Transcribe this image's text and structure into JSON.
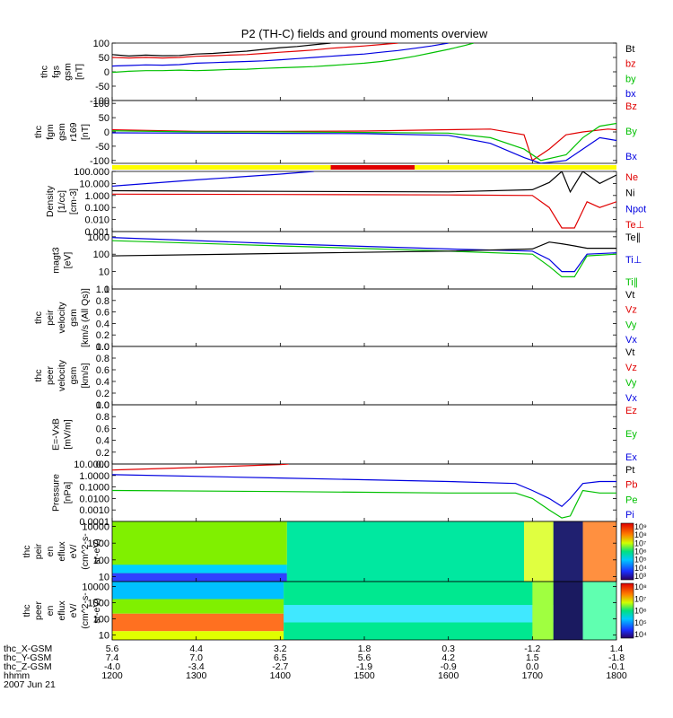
{
  "title": "P2 (TH-C) fields and ground moments overview",
  "chart_data": [
    {
      "id": "fgs",
      "type": "line",
      "ylabel": [
        "thc",
        "fgs",
        "gsm",
        "[nT]"
      ],
      "yticks": [
        "100",
        "50",
        "0",
        "-50",
        "-100"
      ],
      "ylim": [
        -100,
        100
      ],
      "series": [
        {
          "name": "Bt",
          "color": "#000000"
        },
        {
          "name": "bz",
          "color": "#e00000"
        },
        {
          "name": "by",
          "color": "#00c000"
        },
        {
          "name": "bx",
          "color": "#0000e0"
        }
      ],
      "lines": {
        "Bt": [
          [
            1200,
            60
          ],
          [
            1220,
            55
          ],
          [
            1240,
            58
          ],
          [
            1260,
            56
          ],
          [
            1280,
            57
          ],
          [
            1300,
            62
          ],
          [
            1320,
            64
          ],
          [
            1340,
            68
          ],
          [
            1360,
            72
          ],
          [
            1380,
            78
          ],
          [
            1400,
            84
          ],
          [
            1420,
            88
          ],
          [
            1440,
            94
          ],
          [
            1460,
            100
          ]
        ],
        "bz": [
          [
            1200,
            50
          ],
          [
            1220,
            48
          ],
          [
            1240,
            50
          ],
          [
            1260,
            48
          ],
          [
            1280,
            50
          ],
          [
            1300,
            54
          ],
          [
            1320,
            56
          ],
          [
            1340,
            58
          ],
          [
            1360,
            60
          ],
          [
            1380,
            64
          ],
          [
            1400,
            68
          ],
          [
            1420,
            72
          ],
          [
            1440,
            76
          ],
          [
            1460,
            82
          ],
          [
            1480,
            86
          ],
          [
            1500,
            90
          ],
          [
            1520,
            95
          ],
          [
            1540,
            100
          ]
        ],
        "bx": [
          [
            1200,
            20
          ],
          [
            1220,
            22
          ],
          [
            1240,
            24
          ],
          [
            1260,
            23
          ],
          [
            1280,
            25
          ],
          [
            1300,
            30
          ],
          [
            1320,
            32
          ],
          [
            1340,
            34
          ],
          [
            1360,
            36
          ],
          [
            1380,
            38
          ],
          [
            1400,
            42
          ],
          [
            1420,
            46
          ],
          [
            1440,
            50
          ],
          [
            1460,
            54
          ],
          [
            1480,
            58
          ],
          [
            1500,
            62
          ],
          [
            1520,
            68
          ],
          [
            1540,
            74
          ],
          [
            1560,
            82
          ],
          [
            1580,
            90
          ],
          [
            1600,
            100
          ]
        ],
        "by": [
          [
            1200,
            -2
          ],
          [
            1220,
            2
          ],
          [
            1240,
            4
          ],
          [
            1260,
            4
          ],
          [
            1280,
            6
          ],
          [
            1300,
            4
          ],
          [
            1320,
            6
          ],
          [
            1340,
            8
          ],
          [
            1360,
            9
          ],
          [
            1380,
            12
          ],
          [
            1400,
            14
          ],
          [
            1420,
            16
          ],
          [
            1440,
            18
          ],
          [
            1460,
            22
          ],
          [
            1480,
            26
          ],
          [
            1500,
            30
          ],
          [
            1520,
            36
          ],
          [
            1540,
            44
          ],
          [
            1560,
            54
          ],
          [
            1580,
            66
          ],
          [
            1600,
            78
          ],
          [
            1620,
            92
          ],
          [
            1630,
            100
          ]
        ]
      }
    },
    {
      "id": "fgm",
      "type": "line",
      "ylabel": [
        "thc",
        "fgm",
        "gsm",
        "r169",
        "[nT]"
      ],
      "yticks": [
        "100",
        "50",
        "0",
        "-50",
        "-100"
      ],
      "ylim": [
        -110,
        110
      ],
      "series": [
        {
          "name": "Bz",
          "color": "#e00000"
        },
        {
          "name": "By",
          "color": "#00c000"
        },
        {
          "name": "Bx",
          "color": "#0000e0"
        }
      ],
      "lines": {
        "Bz": [
          [
            1200,
            8
          ],
          [
            1300,
            2
          ],
          [
            1400,
            2
          ],
          [
            1500,
            3
          ],
          [
            1600,
            8
          ],
          [
            1650,
            10
          ],
          [
            1690,
            -10
          ],
          [
            1700,
            -100
          ],
          [
            1720,
            -60
          ],
          [
            1740,
            -10
          ],
          [
            1760,
            0
          ],
          [
            1790,
            10
          ],
          [
            1800,
            8
          ]
        ],
        "By": [
          [
            1200,
            4
          ],
          [
            1300,
            0
          ],
          [
            1400,
            0
          ],
          [
            1500,
            -2
          ],
          [
            1600,
            -4
          ],
          [
            1650,
            -20
          ],
          [
            1690,
            -60
          ],
          [
            1710,
            -100
          ],
          [
            1740,
            -80
          ],
          [
            1760,
            -20
          ],
          [
            1780,
            20
          ],
          [
            1800,
            30
          ]
        ],
        "Bx": [
          [
            1200,
            -3
          ],
          [
            1300,
            -4
          ],
          [
            1400,
            -5
          ],
          [
            1500,
            -6
          ],
          [
            1600,
            -12
          ],
          [
            1650,
            -40
          ],
          [
            1690,
            -90
          ],
          [
            1710,
            -110
          ],
          [
            1740,
            -100
          ],
          [
            1760,
            -60
          ],
          [
            1780,
            -20
          ],
          [
            1800,
            -30
          ]
        ]
      }
    },
    {
      "id": "flags",
      "type": "bar",
      "segments": [
        {
          "from": 1200,
          "to": 1460,
          "color": "#ffff00"
        },
        {
          "from": 1460,
          "to": 1560,
          "color": "#e00000"
        },
        {
          "from": 1560,
          "to": 1800,
          "color": "#ffff00"
        }
      ]
    },
    {
      "id": "density",
      "type": "line",
      "ylabel": [
        "Density",
        "[1/cc]",
        "[cm-3]"
      ],
      "yticks": [
        "100.000",
        "10.000",
        "1.000",
        "0.100",
        "0.010",
        "0.001"
      ],
      "ylim": [
        0.001,
        100
      ],
      "series": [
        {
          "name": "Ne",
          "color": "#e00000"
        },
        {
          "name": "Ni",
          "color": "#000000"
        },
        {
          "name": "Npot",
          "color": "#0000e0"
        },
        {
          "name": "Te⊥",
          "color": "#e00000"
        }
      ],
      "lines": {
        "Npot": [
          [
            1200,
            6
          ],
          [
            1300,
            20
          ],
          [
            1400,
            60
          ],
          [
            1440,
            100
          ]
        ],
        "Ni": [
          [
            1200,
            2.5
          ],
          [
            1400,
            2.2
          ],
          [
            1600,
            2
          ],
          [
            1700,
            3
          ],
          [
            1720,
            12
          ],
          [
            1735,
            100
          ],
          [
            1745,
            2
          ],
          [
            1760,
            100
          ],
          [
            1780,
            10
          ],
          [
            1800,
            50
          ]
        ],
        "Ne": [
          [
            1200,
            1.3
          ],
          [
            1400,
            1.2
          ],
          [
            1600,
            1.1
          ],
          [
            1700,
            1
          ],
          [
            1720,
            0.1
          ],
          [
            1735,
            0.002
          ],
          [
            1750,
            0.002
          ],
          [
            1765,
            0.3
          ],
          [
            1780,
            0.1
          ],
          [
            1800,
            0.3
          ]
        ]
      }
    },
    {
      "id": "mag",
      "type": "line",
      "ylabel": [
        "magt3",
        "[eV]"
      ],
      "yticks": [
        "1000",
        "100",
        "10",
        "1"
      ],
      "ylim": [
        1,
        2000
      ],
      "series": [
        {
          "name": "Te∥",
          "color": "#000000"
        },
        {
          "name": "Ti⊥",
          "color": "#0000e0"
        },
        {
          "name": "Ti∥",
          "color": "#00c000"
        }
      ],
      "lines": {
        "Ti⊥": [
          [
            1200,
            900
          ],
          [
            1400,
            400
          ],
          [
            1600,
            200
          ],
          [
            1700,
            150
          ],
          [
            1720,
            50
          ],
          [
            1735,
            10
          ],
          [
            1750,
            10
          ],
          [
            1765,
            100
          ],
          [
            1800,
            120
          ]
        ],
        "Ti∥": [
          [
            1200,
            600
          ],
          [
            1400,
            300
          ],
          [
            1600,
            150
          ],
          [
            1700,
            100
          ],
          [
            1720,
            20
          ],
          [
            1735,
            5
          ],
          [
            1750,
            5
          ],
          [
            1765,
            80
          ],
          [
            1800,
            100
          ]
        ],
        "Te∥": [
          [
            1200,
            80
          ],
          [
            1400,
            110
          ],
          [
            1600,
            150
          ],
          [
            1700,
            200
          ],
          [
            1720,
            500
          ],
          [
            1735,
            400
          ],
          [
            1750,
            300
          ],
          [
            1765,
            220
          ],
          [
            1800,
            220
          ]
        ]
      }
    },
    {
      "id": "peir",
      "type": "line",
      "ylabel": [
        "thc",
        "peir",
        "velocity",
        "gsm",
        "[km/s (All Qs)]"
      ],
      "yticks": [
        "1.0",
        "0.8",
        "0.6",
        "0.4",
        "0.2",
        "0.0"
      ],
      "ylim": [
        0,
        1
      ],
      "series": [
        {
          "name": "Vt",
          "color": "#000000"
        },
        {
          "name": "Vz",
          "color": "#e00000"
        },
        {
          "name": "Vy",
          "color": "#00c000"
        },
        {
          "name": "Vx",
          "color": "#0000e0"
        }
      ]
    },
    {
      "id": "peer",
      "type": "line",
      "ylabel": [
        "thc",
        "peer",
        "velocity",
        "gsm",
        "[km/s]"
      ],
      "yticks": [
        "1.0",
        "0.8",
        "0.6",
        "0.4",
        "0.2",
        "0.0"
      ],
      "ylim": [
        0,
        1
      ],
      "series": [
        {
          "name": "Vt",
          "color": "#000000"
        },
        {
          "name": "Vz",
          "color": "#e00000"
        },
        {
          "name": "Vy",
          "color": "#00c000"
        },
        {
          "name": "Vx",
          "color": "#0000e0"
        }
      ]
    },
    {
      "id": "efield",
      "type": "line",
      "ylabel": [
        "E=-VxB",
        "[mV/m]"
      ],
      "yticks": [
        "1.0",
        "0.8",
        "0.6",
        "0.4",
        "0.2",
        "0.0"
      ],
      "ylim": [
        0,
        1
      ],
      "series": [
        {
          "name": "Ez",
          "color": "#e00000"
        },
        {
          "name": "Ey",
          "color": "#00c000"
        },
        {
          "name": "Ex",
          "color": "#0000e0"
        }
      ]
    },
    {
      "id": "pressure",
      "type": "line",
      "ylabel": [
        "Pressure",
        "[nPa]"
      ],
      "yticks": [
        "10.0000",
        "1.0000",
        "0.1000",
        "0.0100",
        "0.0010",
        "0.0001"
      ],
      "ylim": [
        0.0001,
        10
      ],
      "series": [
        {
          "name": "Pt",
          "color": "#000000"
        },
        {
          "name": "Pb",
          "color": "#e00000"
        },
        {
          "name": "Pe",
          "color": "#00c000"
        },
        {
          "name": "Pi",
          "color": "#0000e0"
        }
      ],
      "lines": {
        "Pb": [
          [
            1200,
            3
          ],
          [
            1300,
            5
          ],
          [
            1400,
            9
          ],
          [
            1410,
            10
          ]
        ],
        "Pi": [
          [
            1200,
            1.2
          ],
          [
            1400,
            0.6
          ],
          [
            1600,
            0.3
          ],
          [
            1680,
            0.2
          ],
          [
            1700,
            0.05
          ],
          [
            1720,
            0.01
          ],
          [
            1735,
            0.002
          ],
          [
            1745,
            0.01
          ],
          [
            1760,
            0.2
          ],
          [
            1780,
            0.3
          ],
          [
            1800,
            0.3
          ]
        ],
        "Pe": [
          [
            1200,
            0.05
          ],
          [
            1400,
            0.04
          ],
          [
            1600,
            0.03
          ],
          [
            1680,
            0.03
          ],
          [
            1700,
            0.01
          ],
          [
            1720,
            0.001
          ],
          [
            1735,
            0.0002
          ],
          [
            1745,
            0.0003
          ],
          [
            1760,
            0.05
          ],
          [
            1780,
            0.03
          ],
          [
            1800,
            0.03
          ]
        ]
      }
    },
    {
      "id": "peir_en",
      "type": "heatmap",
      "ylabel": [
        "thc",
        "peir",
        "en",
        "eflux",
        "eV/",
        "(cm^2-s-",
        "sr-eV)"
      ],
      "yticks": [
        "10000",
        "1000",
        "100",
        "10"
      ],
      "colorbar_ticks": [
        "10⁹",
        "10⁸",
        "10⁷",
        "10⁶",
        "10⁵",
        "10⁴",
        "10³"
      ]
    },
    {
      "id": "peer_en",
      "type": "heatmap",
      "ylabel": [
        "thc",
        "peer",
        "en",
        "eflux",
        "eV/",
        "(cm^2-s-",
        "sr-eV)"
      ],
      "yticks": [
        "10000",
        "1000",
        "100",
        "10"
      ],
      "colorbar_ticks": [
        "10⁸",
        "10⁷",
        "10⁶",
        "10⁵",
        "10⁴"
      ]
    }
  ],
  "xaxis": {
    "ticks": [
      1200,
      1300,
      1400,
      1500,
      1600,
      1700,
      1800
    ],
    "xlim": [
      1200,
      1800
    ],
    "rows": [
      {
        "label": "thc_X-GSM",
        "values": [
          "5.6",
          "4.4",
          "3.2",
          "1.8",
          "0.3",
          "-1.2",
          "1.4"
        ]
      },
      {
        "label": "thc_Y-GSM",
        "values": [
          "7.4",
          "7.0",
          "6.5",
          "5.6",
          "4.2",
          "1.5",
          "-1.8"
        ]
      },
      {
        "label": "thc_Z-GSM",
        "values": [
          "-4.0",
          "-3.4",
          "-2.7",
          "-1.9",
          "-0.9",
          "0.0",
          "-0.1"
        ]
      },
      {
        "label": "hhmm",
        "values": [
          "1200",
          "1300",
          "1400",
          "1500",
          "1600",
          "1700",
          "1800"
        ]
      }
    ],
    "date": "2007 Jun 21"
  }
}
